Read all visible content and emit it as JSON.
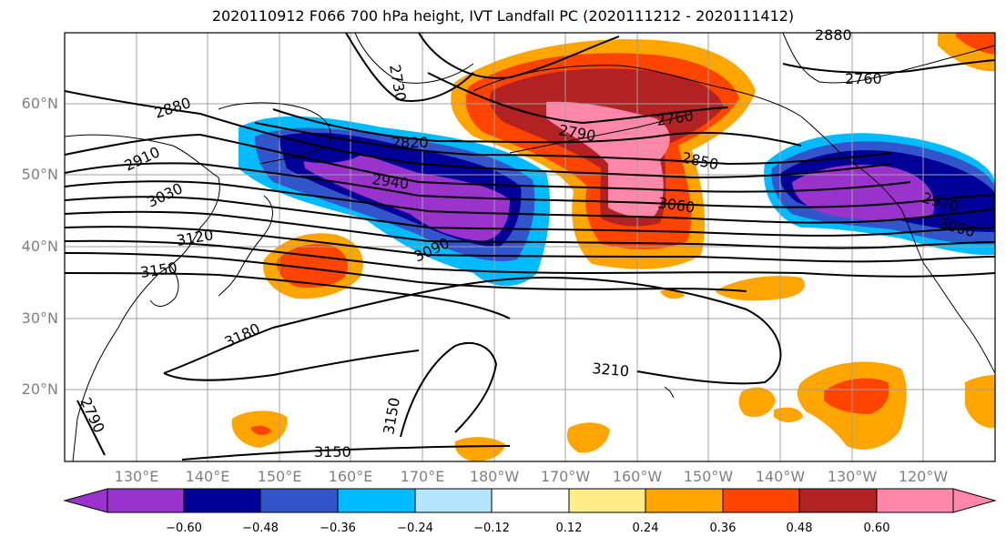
{
  "title": "2020110912 F066 700 hPa height, IVT Landfall PC (2020111212 - 2020111412)",
  "lat_labels": [
    "60°N",
    "50°N",
    "40°N",
    "30°N",
    "20°N"
  ],
  "lon_labels": [
    "130°E",
    "140°E",
    "150°E",
    "160°E",
    "170°E",
    "180°W",
    "170°W",
    "160°W",
    "150°W",
    "140°W",
    "130°W",
    "120°W"
  ],
  "contour_labels": [
    "2880",
    "2910",
    "3030",
    "3120",
    "3150",
    "3180",
    "2730",
    "2820",
    "2940",
    "3090",
    "2790",
    "2760",
    "2850",
    "3060",
    "3210",
    "2760",
    "2880",
    "2970",
    "3000",
    "3150",
    "3150",
    "2790"
  ],
  "colorbar": {
    "colors": [
      "#9933cc",
      "#000099",
      "#3355cc",
      "#00bbff",
      "#b3e5ff",
      "#ffffff",
      "#ffee88",
      "#ffa500",
      "#ff4400",
      "#b22222",
      "#ff88aa"
    ],
    "tick_labels": [
      "−0.60",
      "−0.48",
      "−0.36",
      "−0.24",
      "−0.12",
      "0.12",
      "0.24",
      "0.36",
      "0.48",
      "0.60"
    ]
  }
}
